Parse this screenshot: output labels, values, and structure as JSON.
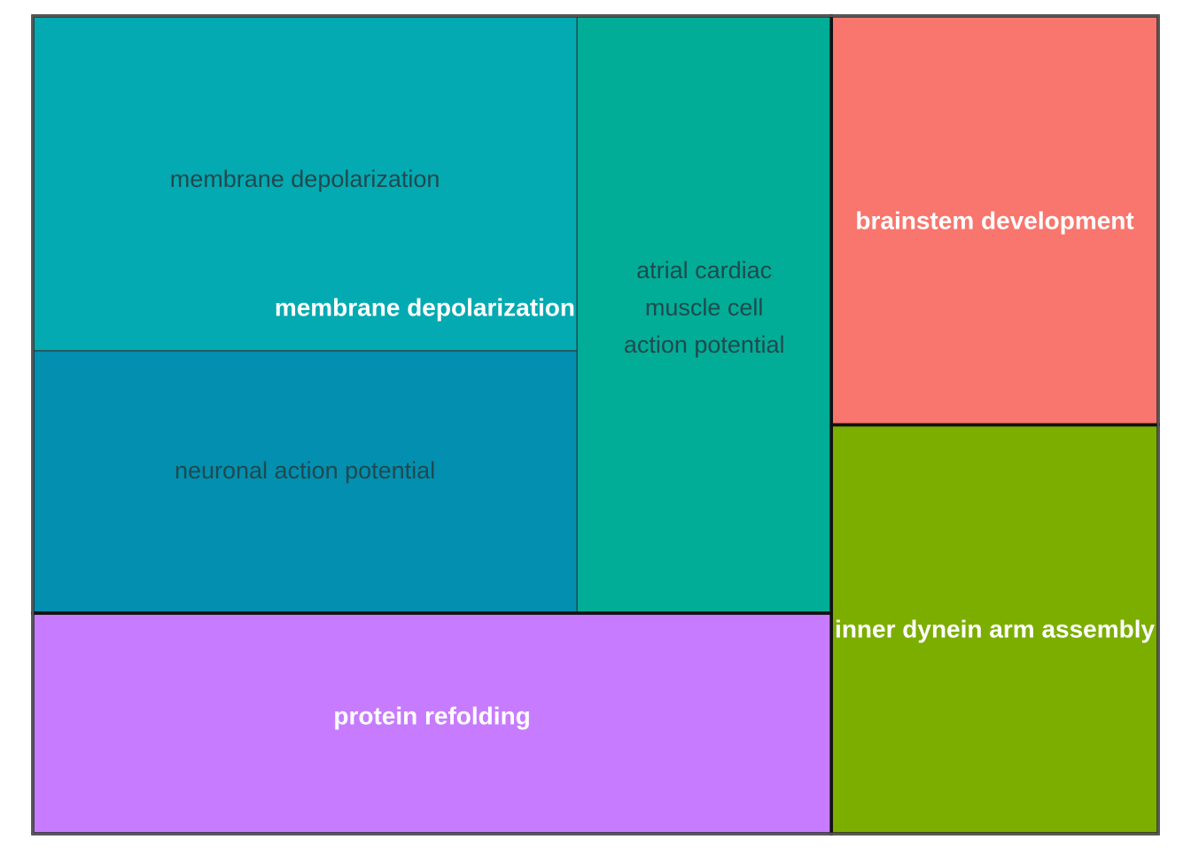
{
  "chart_data": {
    "type": "treemap",
    "groups": [
      {
        "name": "membrane depolarization",
        "color": "#00A9B0",
        "children": [
          {
            "name": "membrane depolarization",
            "color": "#03AAB1",
            "value": 3
          },
          {
            "name": "neuronal action potential",
            "color": "#028FB0",
            "value": 2.35
          },
          {
            "name": "atrial cardiac muscle cell action potential",
            "label_lines": [
              "atrial cardiac",
              "muscle cell",
              "action potential"
            ],
            "color": "#01AD96",
            "value": 2.5
          }
        ]
      },
      {
        "name": "protein refolding",
        "color": "#C77CFF",
        "children": [
          {
            "name": "protein refolding",
            "color": "#C77CFF",
            "value": 2.9
          }
        ]
      },
      {
        "name": "brainstem development",
        "color": "#F8766D",
        "children": [
          {
            "name": "brainstem development",
            "color": "#F8766D",
            "value": 2.2
          }
        ]
      },
      {
        "name": "inner dynein arm assembly",
        "color": "#7CAE00",
        "children": [
          {
            "name": "inner dynein arm assembly",
            "color": "#7CAE00",
            "value": 2.2
          }
        ]
      }
    ],
    "subgroup_text_color": "#1f4a4f",
    "group_text_color": "#ffffff",
    "border_color": "#111111"
  }
}
